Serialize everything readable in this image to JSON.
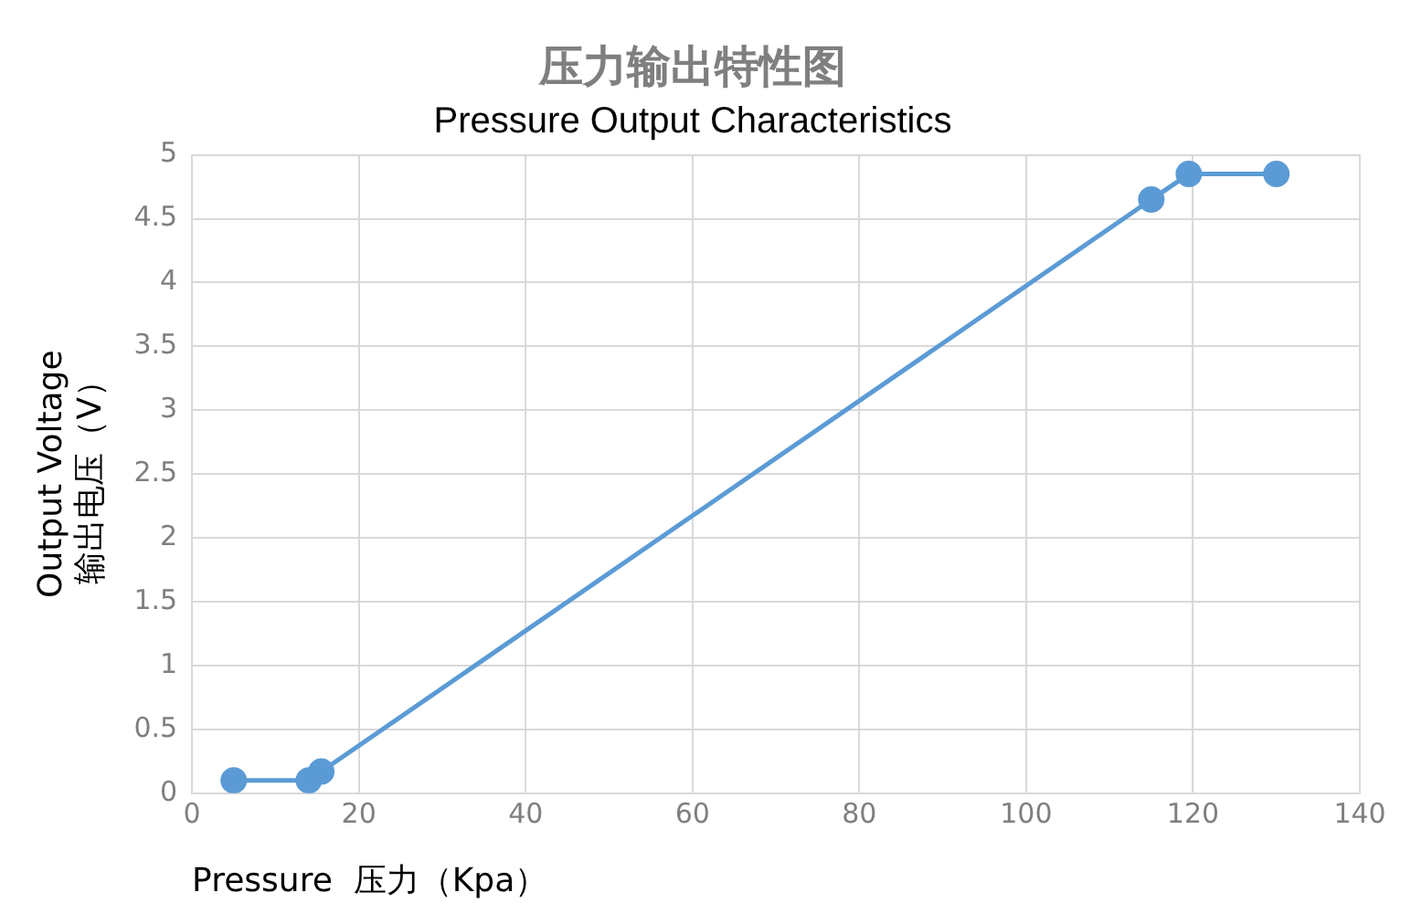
{
  "chart_data": {
    "type": "line",
    "title": "压力输出特性图",
    "subtitle": "Pressure Output Characteristics",
    "xlabel": "Pressure  压力（Kpa）",
    "ylabel": "Output Voltage\n输出电压（V）",
    "x": [
      5,
      14,
      15.5,
      115,
      119.5,
      130
    ],
    "series": [
      {
        "color": "#5b9bd5",
        "values": [
          0.1,
          0.1,
          0.17,
          4.65,
          4.85,
          4.85
        ]
      }
    ],
    "xlim": [
      0,
      140
    ],
    "xticks": [
      0,
      20,
      40,
      60,
      80,
      100,
      120,
      140
    ],
    "ylim": [
      0,
      5
    ],
    "yticks": [
      0,
      0.5,
      1,
      1.5,
      2,
      2.5,
      3,
      3.5,
      4,
      4.5,
      5
    ],
    "grid": true,
    "marker": "circle",
    "line_style": "solid",
    "legend": false
  }
}
